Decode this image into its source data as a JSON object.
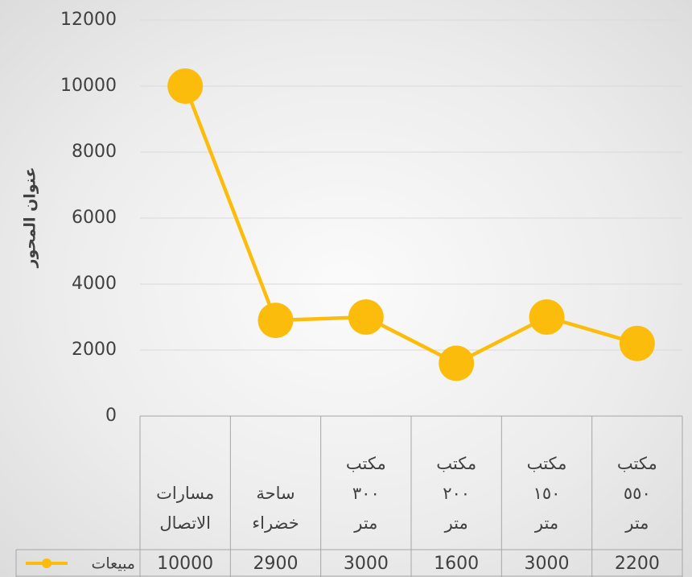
{
  "chart_data": {
    "type": "line",
    "y_label": "عنوان المحور",
    "categories": [
      "مسارات\nالاتصال",
      "ساحة\nخضراء",
      "مكتب\n٣٠٠\nمتر",
      "مكتب\n٢٠٠\nمتر",
      "مكتب\n١٥٠\nمتر",
      "مكتب\n٥٥٠\nمتر"
    ],
    "series": [
      {
        "name": "مبيعات",
        "color": "#fbbc0c",
        "values": [
          10000,
          2900,
          3000,
          1600,
          3000,
          2200
        ]
      }
    ],
    "ylim": [
      0,
      12000
    ],
    "yticks": [
      0,
      2000,
      4000,
      6000,
      8000,
      10000,
      12000
    ],
    "grid": true,
    "data_table": true
  }
}
